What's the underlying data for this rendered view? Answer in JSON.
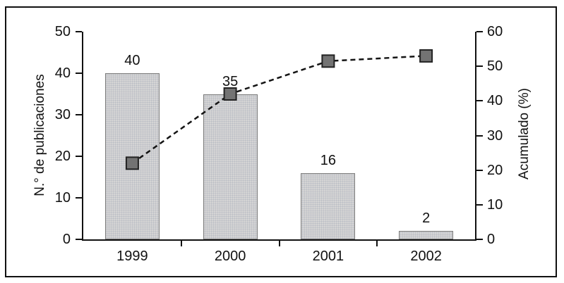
{
  "chart_data": {
    "type": "bar",
    "subtype": "pareto-combo",
    "categories": [
      "1999",
      "2000",
      "2001",
      "2002"
    ],
    "series": [
      {
        "name": "N.° de publicaciones",
        "kind": "bar",
        "axis": "left",
        "values": [
          40,
          35,
          16,
          2
        ]
      },
      {
        "name": "Acumulado (%)",
        "kind": "dashed-line-square-markers",
        "axis": "right",
        "values": [
          22,
          42,
          51.5,
          53
        ]
      }
    ],
    "bar_value_labels": [
      "40",
      "35",
      "16",
      "2"
    ],
    "left_axis": {
      "label": "N.° de publicaciones",
      "min": 0,
      "max": 50,
      "ticks": [
        0,
        10,
        20,
        30,
        40,
        50
      ]
    },
    "right_axis": {
      "label": "Acumulado (%)",
      "min": 0,
      "max": 60,
      "ticks": [
        0,
        10,
        20,
        30,
        40,
        50,
        60
      ]
    },
    "grid": false,
    "legend": "none",
    "colors": {
      "background": "#ffffff",
      "frame_border": "#111111",
      "axis": "#111111",
      "text": "#111111",
      "bar_fill": "#d5d5d5",
      "bar_dot": "#b9bcc4",
      "bar_border": "#7a7a7a",
      "line": "#141414",
      "marker_fill": "#737373",
      "marker_border": "#222222"
    }
  }
}
